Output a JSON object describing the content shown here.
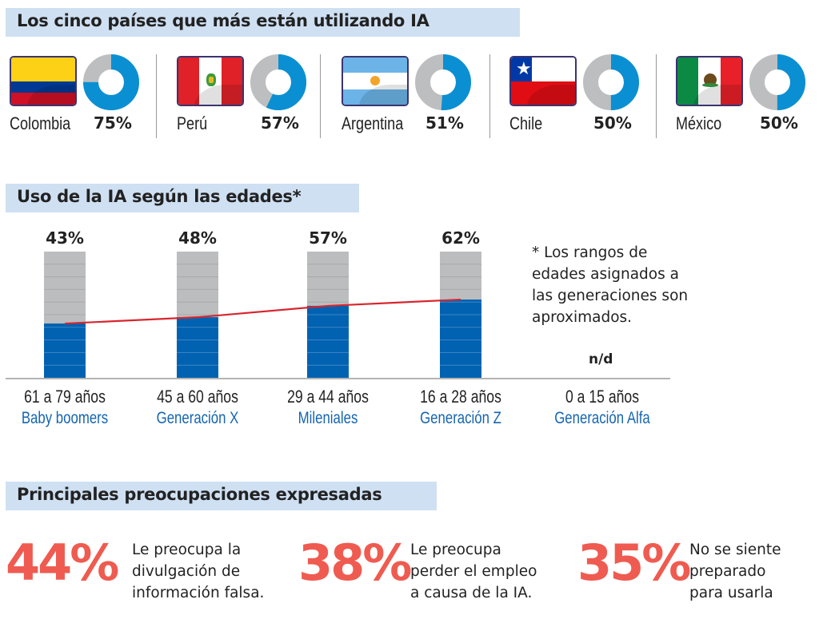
{
  "sections": {
    "countries_title": "Los cinco países que más están utilizando IA",
    "ages_title": "Uso de la IA según las edades*",
    "concerns_title": "Principales preocupaciones expresadas"
  },
  "colors": {
    "banner": "#cfe0f3",
    "donut_fill": "#0b8fd3",
    "donut_rest": "#bdbec0",
    "bar_fill": "#0062b0",
    "bar_rest": "#bcbdbf",
    "trend_line": "#d7262f",
    "generation_label": "#1565b0",
    "concern_accent": "#ef5b50"
  },
  "countries": [
    {
      "name": "Colombia",
      "percent_label": "75%",
      "value": 75,
      "flag": "colombia-flag"
    },
    {
      "name": "Perú",
      "percent_label": "57%",
      "value": 57,
      "flag": "peru-flag"
    },
    {
      "name": "Argentina",
      "percent_label": "51%",
      "value": 51,
      "flag": "argentina-flag"
    },
    {
      "name": "Chile",
      "percent_label": "50%",
      "value": 50,
      "flag": "chile-flag"
    },
    {
      "name": "México",
      "percent_label": "50%",
      "value": 50,
      "flag": "mexico-flag"
    }
  ],
  "chart_data": [
    {
      "type": "pie",
      "title": "Los cinco países que más están utilizando IA",
      "categories": [
        "Colombia",
        "Perú",
        "Argentina",
        "Chile",
        "México"
      ],
      "values": [
        75,
        57,
        51,
        50,
        50
      ],
      "unit": "%"
    },
    {
      "type": "bar",
      "title": "Uso de la IA según las edades*",
      "categories": [
        "61 a 79 años",
        "45 a 60 años",
        "29 a 44 años",
        "16 a 28 años",
        "0 a 15 años"
      ],
      "generations": [
        "Baby boomers",
        "Generación X",
        "Mileniales",
        "Generación Z",
        "Generación Alfa"
      ],
      "values": [
        43,
        48,
        57,
        62,
        null
      ],
      "data_labels": [
        "43%",
        "48%",
        "57%",
        "62%",
        "n/d"
      ],
      "trend_line": true,
      "ylim": [
        0,
        100
      ],
      "xlabel": "",
      "ylabel": "",
      "grid": false
    }
  ],
  "age_chart": {
    "note": "* Los rangos de edades asignados a las generaciones son aproximados.",
    "note_lines": [
      "* Los rangos de",
      "edades asignados a",
      "las generaciones son",
      "aproximados."
    ],
    "groups": [
      {
        "age": "61 a 79 años",
        "generation": "Baby boomers",
        "label": "43%"
      },
      {
        "age": "45 a 60 años",
        "generation": "Generación X",
        "label": "48%"
      },
      {
        "age": "29 a 44 años",
        "generation": "Mileniales",
        "label": "57%"
      },
      {
        "age": "16 a 28 años",
        "generation": "Generación Z",
        "label": "62%"
      },
      {
        "age": "0 a 15 años",
        "generation": "Generación Alfa",
        "label": "n/d"
      }
    ]
  },
  "concerns": [
    {
      "percent": "44%",
      "lines": [
        "Le preocupa la",
        "divulgación de",
        "información falsa."
      ]
    },
    {
      "percent": "38%",
      "lines": [
        "Le preocupa",
        "perder el empleo",
        "a causa de la IA."
      ]
    },
    {
      "percent": "35%",
      "lines": [
        "No se siente",
        "preparado",
        "para usarla"
      ]
    }
  ]
}
